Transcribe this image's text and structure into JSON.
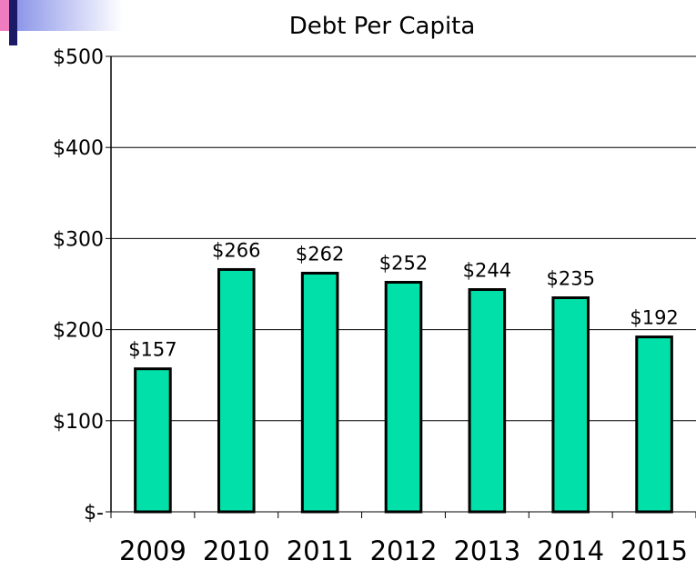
{
  "chart_data": {
    "type": "bar",
    "title": "Debt Per Capita",
    "categories": [
      "2009",
      "2010",
      "2011",
      "2012",
      "2013",
      "2014",
      "2015"
    ],
    "values": [
      157,
      266,
      262,
      252,
      244,
      235,
      192
    ],
    "data_labels": [
      "$157",
      "$266",
      "$262",
      "$252",
      "$244",
      "$235",
      "$192"
    ],
    "yticks": [
      0,
      100,
      200,
      300,
      400,
      500
    ],
    "ytick_labels": [
      "$-",
      "$100",
      "$200",
      "$300",
      "$400",
      "$500"
    ],
    "ylim": [
      0,
      500
    ],
    "grid": true,
    "legend": "none",
    "bar_color": "#00E0A8"
  },
  "colors": {
    "corner_blue": "#7B86E6",
    "corner_dark": "#1A1A66",
    "corner_pink": "#F07CC0"
  }
}
